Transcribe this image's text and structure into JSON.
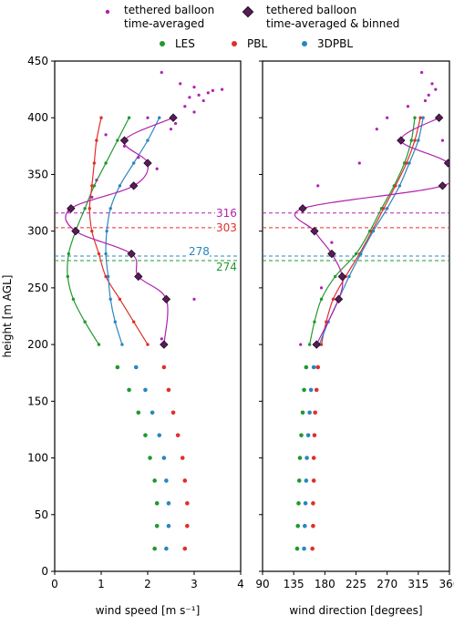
{
  "chart_data": [
    {
      "type": "scatter",
      "panel": "wind speed",
      "xlabel": "wind speed [m s⁻¹]",
      "ylabel": "height [m AGL]",
      "xlim": [
        0,
        4
      ],
      "ylim": [
        0,
        450
      ],
      "xticks": [
        "0",
        "1",
        "2",
        "3",
        "4"
      ],
      "yticks": [
        "0",
        "50",
        "100",
        "150",
        "200",
        "250",
        "300",
        "350",
        "400",
        "450"
      ],
      "series": [
        {
          "name": "LES",
          "color": "#1f9a2e",
          "y": [
            20,
            40,
            60,
            80,
            100,
            120,
            140,
            160,
            180,
            200,
            220,
            240,
            260,
            280,
            300,
            320,
            340,
            360,
            380,
            400
          ],
          "x": [
            2.15,
            2.2,
            2.2,
            2.15,
            2.05,
            1.95,
            1.8,
            1.6,
            1.35,
            0.95,
            0.65,
            0.4,
            0.28,
            0.3,
            0.45,
            0.65,
            0.85,
            1.1,
            1.35,
            1.6
          ]
        },
        {
          "name": "PBL",
          "color": "#e0302a",
          "y": [
            20,
            40,
            60,
            80,
            100,
            120,
            140,
            160,
            180,
            200,
            220,
            240,
            260,
            280,
            300,
            320,
            340,
            360,
            380,
            400
          ],
          "x": [
            2.8,
            2.85,
            2.85,
            2.8,
            2.75,
            2.65,
            2.55,
            2.45,
            2.35,
            2.0,
            1.7,
            1.4,
            1.1,
            0.95,
            0.8,
            0.75,
            0.8,
            0.85,
            0.9,
            1.0
          ]
        },
        {
          "name": "3DPBL",
          "color": "#2a86c0",
          "y": [
            20,
            40,
            60,
            80,
            100,
            120,
            140,
            160,
            180,
            200,
            220,
            240,
            260,
            280,
            300,
            320,
            340,
            360,
            380,
            400
          ],
          "x": [
            2.4,
            2.45,
            2.45,
            2.4,
            2.35,
            2.25,
            2.1,
            1.95,
            1.75,
            1.45,
            1.3,
            1.2,
            1.15,
            1.1,
            1.12,
            1.2,
            1.4,
            1.7,
            2.0,
            2.25
          ]
        },
        {
          "name": "tethered balloon time-averaged",
          "color": "#b020b0",
          "y": [
            205,
            240,
            300,
            318,
            330,
            345,
            355,
            365,
            375,
            385,
            390,
            395,
            400,
            405,
            410,
            415,
            418,
            420,
            422,
            424,
            425,
            427,
            430,
            440
          ],
          "x": [
            2.3,
            3.0,
            0.5,
            0.3,
            0.8,
            0.9,
            2.2,
            1.8,
            1.5,
            1.1,
            2.5,
            2.6,
            2.0,
            3.0,
            2.8,
            3.2,
            2.9,
            3.1,
            3.3,
            3.4,
            3.6,
            3.0,
            2.7,
            2.3
          ]
        },
        {
          "name": "tethered balloon time-averaged & binned",
          "color": "#b020b0",
          "y": [
            200,
            240,
            260,
            280,
            300,
            320,
            340,
            360,
            380,
            400
          ],
          "x": [
            2.35,
            2.4,
            1.8,
            1.65,
            0.45,
            0.35,
            1.7,
            2.0,
            1.5,
            2.55
          ]
        }
      ]
    },
    {
      "type": "scatter",
      "panel": "wind direction",
      "xlabel": "wind direction [degrees]",
      "xlim": [
        90,
        360
      ],
      "ylim": [
        0,
        450
      ],
      "xticks": [
        "90",
        "135",
        "180",
        "225",
        "270",
        "315",
        "360"
      ],
      "series": [
        {
          "name": "LES",
          "y": [
            20,
            40,
            60,
            80,
            100,
            120,
            140,
            160,
            180,
            200,
            220,
            240,
            260,
            280,
            300,
            320,
            340,
            360,
            380,
            400
          ],
          "x": [
            140,
            141,
            142,
            143,
            144,
            146,
            148,
            150,
            153,
            158,
            165,
            175,
            195,
            225,
            245,
            262,
            280,
            295,
            305,
            310
          ]
        },
        {
          "name": "PBL",
          "y": [
            20,
            40,
            60,
            80,
            100,
            120,
            140,
            160,
            180,
            200,
            220,
            240,
            260,
            280,
            300,
            320,
            340,
            360,
            380,
            400
          ],
          "x": [
            162,
            163,
            163,
            164,
            164,
            165,
            166,
            168,
            170,
            175,
            182,
            192,
            210,
            230,
            248,
            265,
            282,
            298,
            310,
            318
          ]
        },
        {
          "name": "3DPBL",
          "y": [
            20,
            40,
            60,
            80,
            100,
            120,
            140,
            160,
            180,
            200,
            220,
            240,
            260,
            280,
            300,
            320,
            340,
            360,
            380,
            400
          ],
          "x": [
            150,
            151,
            152,
            153,
            154,
            156,
            158,
            160,
            164,
            172,
            185,
            200,
            215,
            232,
            250,
            270,
            288,
            302,
            315,
            322
          ]
        },
        {
          "name": "tethered balloon time-averaged",
          "y": [
            200,
            250,
            290,
            320,
            340,
            360,
            380,
            390,
            400,
            410,
            415,
            420,
            425,
            430,
            440
          ],
          "x": [
            145,
            175,
            190,
            150,
            170,
            230,
            350,
            255,
            270,
            300,
            325,
            330,
            340,
            335,
            320
          ]
        },
        {
          "name": "tethered balloon time-averaged & binned",
          "y": [
            200,
            240,
            260,
            280,
            300,
            320,
            340,
            360,
            380,
            400
          ],
          "x": [
            168,
            200,
            205,
            190,
            165,
            148,
            350,
            358,
            290,
            345
          ]
        }
      ]
    }
  ],
  "annotations": [
    {
      "label": "316",
      "height": 316,
      "color": "#b020b0"
    },
    {
      "label": "303",
      "height": 303,
      "color": "#e0302a"
    },
    {
      "label": "278",
      "height": 278,
      "color": "#2a86c0"
    },
    {
      "label": "274",
      "height": 274,
      "color": "#1f9a2e"
    }
  ],
  "legend": {
    "balloon_avg": "tethered balloon\ntime-averaged",
    "balloon_binned": "tethered balloon\ntime-averaged & binned",
    "les": "LES",
    "pbl": "PBL",
    "dpbl": "3DPBL"
  },
  "colors": {
    "les": "#1f9a2e",
    "pbl": "#e0302a",
    "dpbl": "#2a86c0",
    "balloon": "#b020b0",
    "balloon_marker": "#5a1a5a"
  }
}
